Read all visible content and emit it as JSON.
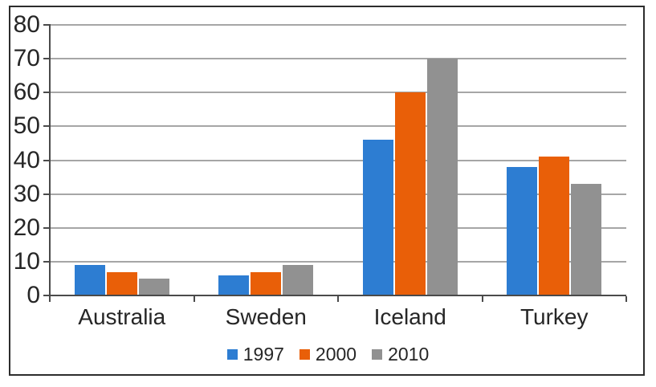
{
  "chart_data": {
    "type": "bar",
    "title": "",
    "categories": [
      "Australia",
      "Sweden",
      "Iceland",
      "Turkey"
    ],
    "series": [
      {
        "name": "1997",
        "color": "#2d7dd2",
        "values": [
          9,
          6,
          46,
          38
        ]
      },
      {
        "name": "2000",
        "color": "#e95f08",
        "values": [
          7,
          7,
          60,
          41
        ]
      },
      {
        "name": "2010",
        "color": "#919191",
        "values": [
          5,
          9,
          70,
          33
        ]
      }
    ],
    "xlabel": "",
    "ylabel": "",
    "ylim": [
      0,
      80
    ],
    "y_ticks": [
      0,
      10,
      20,
      30,
      40,
      50,
      60,
      70,
      80
    ],
    "grid": true,
    "legend_position": "bottom"
  },
  "style": {
    "gridline_color": "#a6a6a6",
    "axis_color": "#4a4a4a",
    "text_color": "#262626",
    "frame_border_color": "#2d2d2d",
    "background_color": "#ffffff"
  }
}
